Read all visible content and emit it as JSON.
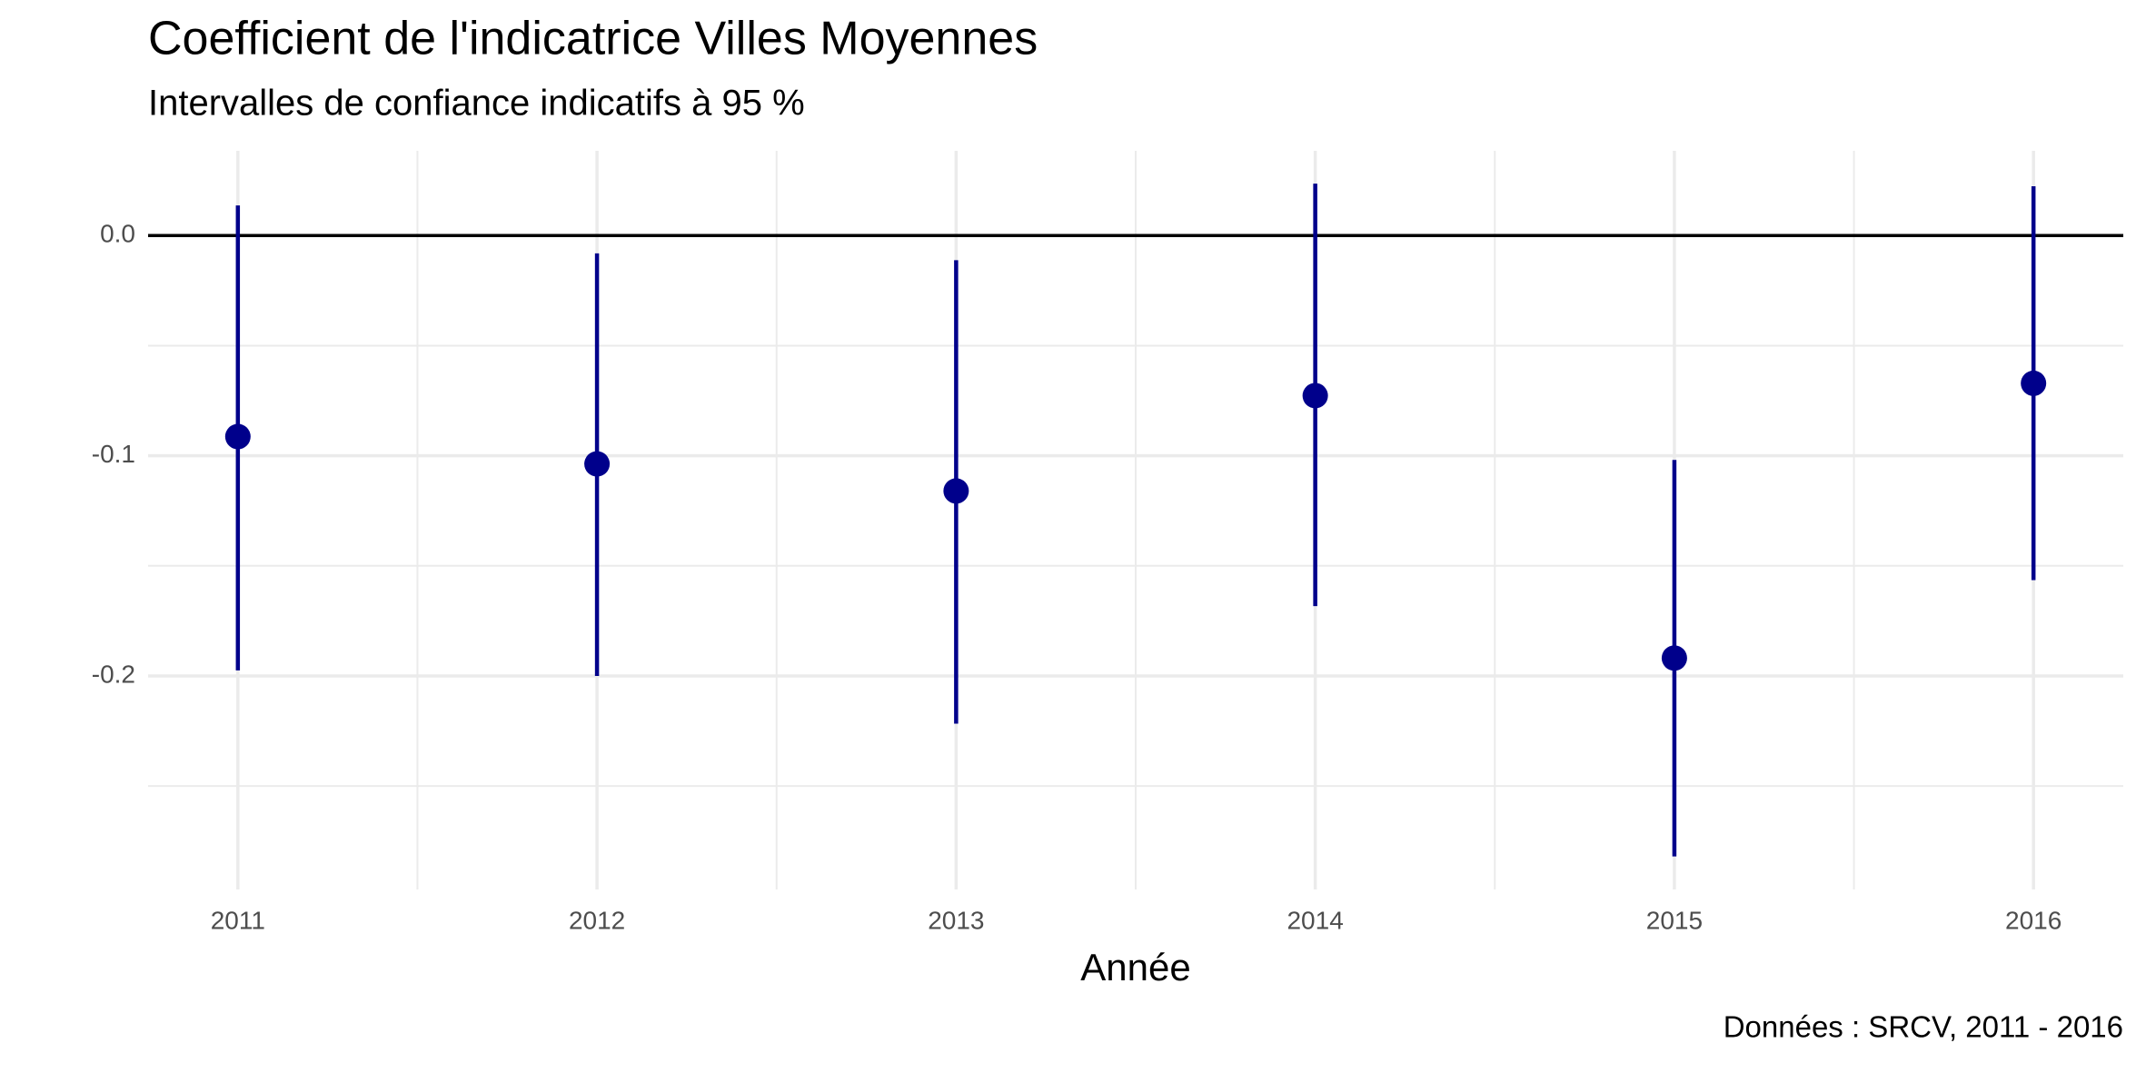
{
  "chart_data": {
    "type": "pointrange",
    "title": "Coefficient de l'indicatrice Villes Moyennes",
    "subtitle": "Intervalles de confiance indicatifs à 95 %",
    "x_label": "Année",
    "caption": "Données : SRCV,  2011 - 2016",
    "x": [
      2011,
      2012,
      2013,
      2014,
      2015,
      2016
    ],
    "series": [
      {
        "color": "#00008b",
        "values": [
          -0.0913,
          -0.1037,
          -0.116,
          -0.0727,
          -0.1919,
          -0.0671
        ],
        "lower": [
          -0.1975,
          -0.2,
          -0.2217,
          -0.1683,
          -0.282,
          -0.1565
        ],
        "upper": [
          0.0137,
          -0.0081,
          -0.0112,
          0.0236,
          -0.1019,
          0.0224
        ]
      }
    ],
    "xlim": [
      2010.75,
      2016.25
    ],
    "xticks": [
      2011,
      2012,
      2013,
      2014,
      2015,
      2016
    ],
    "ylim": [
      -0.297,
      0.0385
    ],
    "yticks": [
      {
        "value": 0,
        "label": "0.0"
      },
      -0.1,
      -0.2
    ],
    "hline": 0,
    "grid": true
  }
}
